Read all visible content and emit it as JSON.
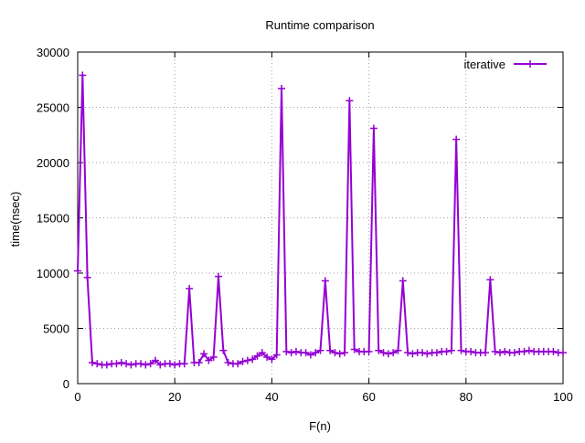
{
  "chart_data": {
    "type": "line",
    "title": "Runtime comparison",
    "xlabel": "F(n)",
    "ylabel": "time(nsec)",
    "xlim": [
      0,
      100
    ],
    "ylim": [
      0,
      30000
    ],
    "xticks": [
      0,
      20,
      40,
      60,
      80,
      100
    ],
    "yticks": [
      0,
      5000,
      10000,
      15000,
      20000,
      25000,
      30000
    ],
    "grid": true,
    "legend_position": "top-right",
    "series": [
      {
        "name": "iterative",
        "color": "#9400d3",
        "marker": "plus",
        "x": [
          0,
          1,
          2,
          3,
          4,
          5,
          6,
          7,
          8,
          9,
          10,
          11,
          12,
          13,
          14,
          15,
          16,
          17,
          18,
          19,
          20,
          21,
          22,
          23,
          24,
          25,
          26,
          27,
          28,
          29,
          30,
          31,
          32,
          33,
          34,
          35,
          36,
          37,
          38,
          39,
          40,
          41,
          42,
          43,
          44,
          45,
          46,
          47,
          48,
          49,
          50,
          51,
          52,
          53,
          54,
          55,
          56,
          57,
          58,
          59,
          60,
          61,
          62,
          63,
          64,
          65,
          66,
          67,
          68,
          69,
          70,
          71,
          72,
          73,
          74,
          75,
          76,
          77,
          78,
          79,
          80,
          81,
          82,
          83,
          84,
          85,
          86,
          87,
          88,
          89,
          90,
          91,
          92,
          93,
          94,
          95,
          96,
          97,
          98,
          99,
          100
        ],
        "y": [
          10200,
          27900,
          9600,
          1900,
          1800,
          1700,
          1700,
          1800,
          1800,
          1900,
          1800,
          1700,
          1800,
          1800,
          1700,
          1800,
          2100,
          1700,
          1800,
          1800,
          1700,
          1800,
          1800,
          8600,
          1900,
          1900,
          2700,
          2100,
          2400,
          9700,
          3000,
          1900,
          1800,
          1800,
          2000,
          2100,
          2200,
          2500,
          2800,
          2400,
          2200,
          2600,
          26700,
          2900,
          2800,
          2900,
          2800,
          2800,
          2600,
          2800,
          3000,
          9300,
          3000,
          2800,
          2700,
          2800,
          25600,
          3100,
          2900,
          2900,
          2900,
          23100,
          3000,
          2800,
          2700,
          2800,
          3000,
          9300,
          2800,
          2700,
          2800,
          2800,
          2700,
          2800,
          2800,
          2900,
          2900,
          3000,
          22100,
          3000,
          2900,
          2900,
          2800,
          2800,
          2800,
          9400,
          2900,
          2800,
          2900,
          2800,
          2800,
          2900,
          2900,
          3000,
          2900,
          2900,
          2900,
          2900,
          2900,
          2800,
          2800
        ]
      }
    ]
  }
}
